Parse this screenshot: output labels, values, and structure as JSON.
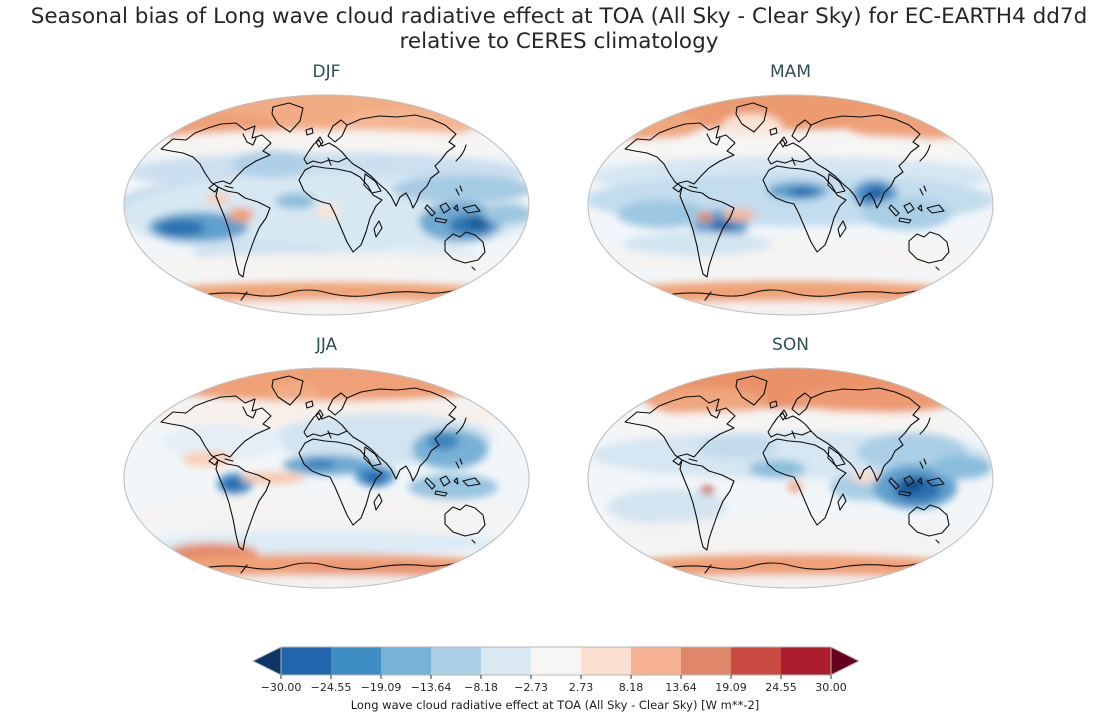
{
  "figure": {
    "title_line1": "Seasonal bias of Long wave cloud radiative effect at TOA (All Sky - Clear Sky) for EC-EARTH4 dd7d",
    "title_line2": "relative to CERES climatology"
  },
  "styles": {
    "figure_title_color": "#262626",
    "panel_title_color": "#2e4f55",
    "map_outline_color": "#c2c2c2",
    "coastline_color": "#0d0d0d",
    "ocean_base_color": "#f2f6f9"
  },
  "panels": [
    {
      "id": "djf",
      "title": "DJF",
      "blobs": [
        [
          203,
          16,
          195,
          24,
          "#f2ac83"
        ],
        [
          95,
          34,
          60,
          16,
          "#eea077"
        ],
        [
          285,
          30,
          70,
          14,
          "#f4b692"
        ],
        [
          203,
          52,
          195,
          16,
          "#f7f5f3"
        ],
        [
          203,
          78,
          200,
          20,
          "#ccdff0"
        ],
        [
          60,
          115,
          70,
          25,
          "#c2daec"
        ],
        [
          203,
          122,
          205,
          42,
          "#d8e8f3"
        ],
        [
          150,
          70,
          40,
          14,
          "#aecfe6"
        ],
        [
          340,
          95,
          70,
          14,
          "#a5cbe3"
        ],
        [
          75,
          133,
          50,
          15,
          "#5fa0cd"
        ],
        [
          58,
          134,
          24,
          8,
          "#2b6fb0"
        ],
        [
          172,
          107,
          20,
          8,
          "#8fbeda"
        ],
        [
          338,
          128,
          42,
          20,
          "#70a9d1"
        ],
        [
          348,
          131,
          22,
          10,
          "#2f74b2"
        ],
        [
          354,
          128,
          10,
          6,
          "#155a97"
        ],
        [
          385,
          120,
          25,
          10,
          "#9cc6e0"
        ],
        [
          118,
          121,
          13,
          7,
          "#efa076"
        ],
        [
          95,
          105,
          12,
          6,
          "#f7cdb4"
        ],
        [
          205,
          117,
          12,
          7,
          "#fbe3d3"
        ],
        [
          140,
          160,
          70,
          14,
          "#cfe2f0"
        ],
        [
          300,
          165,
          60,
          12,
          "#dfecf5"
        ],
        [
          203,
          172,
          195,
          12,
          "#f6f4f2"
        ],
        [
          203,
          200,
          185,
          12,
          "#f0a477"
        ],
        [
          203,
          216,
          170,
          10,
          "#f4f2f0"
        ]
      ]
    },
    {
      "id": "mam",
      "title": "MAM",
      "blobs": [
        [
          203,
          14,
          195,
          22,
          "#ec9a70"
        ],
        [
          60,
          32,
          55,
          14,
          "#f0a77e"
        ],
        [
          330,
          30,
          75,
          16,
          "#efa27a"
        ],
        [
          165,
          32,
          30,
          12,
          "#f9e4d6"
        ],
        [
          203,
          55,
          195,
          14,
          "#f7f6f4"
        ],
        [
          203,
          82,
          200,
          20,
          "#d6e6f2"
        ],
        [
          203,
          106,
          205,
          26,
          "#c3dcee"
        ],
        [
          133,
          131,
          28,
          15,
          "#5f9fcc"
        ],
        [
          136,
          133,
          13,
          8,
          "#2b6fb0"
        ],
        [
          211,
          97,
          30,
          9,
          "#5f9fcc"
        ],
        [
          216,
          98,
          14,
          5,
          "#2b6fb0"
        ],
        [
          288,
          100,
          22,
          14,
          "#4b93c6"
        ],
        [
          289,
          101,
          11,
          8,
          "#1f63a8"
        ],
        [
          320,
          120,
          45,
          16,
          "#a9cee5"
        ],
        [
          75,
          120,
          45,
          14,
          "#9dc7e2"
        ],
        [
          118,
          123,
          8,
          5,
          "#e08565"
        ],
        [
          152,
          121,
          16,
          6,
          "#f5b794"
        ],
        [
          203,
          162,
          195,
          18,
          "#f5f4f2"
        ],
        [
          110,
          150,
          75,
          12,
          "#d3e5f1"
        ],
        [
          203,
          199,
          180,
          12,
          "#f0a276"
        ],
        [
          203,
          216,
          170,
          9,
          "#f4f2f0"
        ]
      ]
    },
    {
      "id": "jja",
      "title": "JJA",
      "blobs": [
        [
          203,
          14,
          195,
          20,
          "#efa077"
        ],
        [
          170,
          28,
          26,
          14,
          "#f2ab82"
        ],
        [
          203,
          48,
          195,
          14,
          "#f8f0ea"
        ],
        [
          260,
          72,
          110,
          26,
          "#d2e4f1"
        ],
        [
          100,
          75,
          60,
          18,
          "#e4eef6"
        ],
        [
          205,
          98,
          45,
          10,
          "#6ea8d0"
        ],
        [
          196,
          97,
          16,
          6,
          "#3b84bc"
        ],
        [
          252,
          109,
          20,
          11,
          "#4b93c6"
        ],
        [
          251,
          111,
          10,
          6,
          "#2166ac"
        ],
        [
          112,
          117,
          18,
          11,
          "#4b93c6"
        ],
        [
          110,
          117,
          9,
          6,
          "#2166ac"
        ],
        [
          327,
          82,
          38,
          20,
          "#79b1d6"
        ],
        [
          320,
          74,
          16,
          9,
          "#3b84bc"
        ],
        [
          330,
          120,
          45,
          13,
          "#97c4e0"
        ],
        [
          150,
          111,
          32,
          6,
          "#f7c8ac"
        ],
        [
          85,
          92,
          26,
          8,
          "#f8cfb8"
        ],
        [
          203,
          150,
          195,
          22,
          "#f4f3f1"
        ],
        [
          203,
          176,
          180,
          12,
          "#dcebf4"
        ],
        [
          90,
          186,
          45,
          10,
          "#e58b6a"
        ],
        [
          203,
          199,
          180,
          12,
          "#efa077"
        ],
        [
          260,
          205,
          90,
          9,
          "#e9946f"
        ],
        [
          203,
          217,
          165,
          9,
          "#f3f1ef"
        ]
      ]
    },
    {
      "id": "son",
      "title": "SON",
      "blobs": [
        [
          203,
          16,
          195,
          26,
          "#ea9168"
        ],
        [
          290,
          32,
          85,
          14,
          "#ed9a72"
        ],
        [
          120,
          35,
          60,
          14,
          "#efa67e"
        ],
        [
          203,
          58,
          195,
          14,
          "#f7f5f3"
        ],
        [
          203,
          88,
          200,
          24,
          "#d6e6f2"
        ],
        [
          150,
          80,
          40,
          12,
          "#c2daec"
        ],
        [
          325,
          85,
          55,
          20,
          "#abcfe6"
        ],
        [
          190,
          102,
          28,
          9,
          "#8abddc"
        ],
        [
          282,
          120,
          40,
          14,
          "#a9cee5"
        ],
        [
          328,
          120,
          42,
          22,
          "#5f9fcc"
        ],
        [
          330,
          122,
          24,
          13,
          "#2b6fb0"
        ],
        [
          324,
          118,
          12,
          7,
          "#11518f"
        ],
        [
          375,
          100,
          30,
          12,
          "#8abddc"
        ],
        [
          120,
          124,
          7,
          5,
          "#c84a42"
        ],
        [
          208,
          120,
          7,
          5,
          "#ef9c74"
        ],
        [
          278,
          110,
          14,
          6,
          "#f9ddcc"
        ],
        [
          80,
          140,
          60,
          18,
          "#d3e5f1"
        ],
        [
          203,
          168,
          190,
          16,
          "#f5f3f1"
        ],
        [
          203,
          200,
          182,
          13,
          "#efa077"
        ],
        [
          203,
          217,
          168,
          9,
          "#f3f1ef"
        ]
      ]
    }
  ],
  "colorbar": {
    "tick_labels": [
      "−30.00",
      "−24.55",
      "−19.09",
      "−13.64",
      "−8.18",
      "−2.73",
      "2.73",
      "8.18",
      "13.64",
      "19.09",
      "24.55",
      "30.00"
    ],
    "segment_colors": [
      "#2166ac",
      "#3e8ec4",
      "#77b3d7",
      "#abcfe5",
      "#dbe9f2",
      "#f7f6f4",
      "#fbe0d1",
      "#f5b191",
      "#e0876a",
      "#c94b42",
      "#ab1c2c"
    ],
    "extend_left_color": "#0b3666",
    "extend_right_color": "#67001f",
    "border_color": "#b5b5b5",
    "tick_color": "#262626",
    "label": "Long wave cloud radiative effect at TOA (All Sky - Clear Sky) [W m**-2]"
  },
  "chart_data": {
    "type": "heatmap",
    "title": "Seasonal bias of Long wave cloud radiative effect at TOA (All Sky - Clear Sky) for EC-EARTH4 dd7d relative to CERES climatology",
    "panels": [
      "DJF",
      "MAM",
      "JJA",
      "SON"
    ],
    "variable": "Long wave cloud radiative effect at TOA (All Sky - Clear Sky)",
    "units": "W m**-2",
    "model": "EC-EARTH4 dd7d",
    "reference": "CERES climatology",
    "layout": {
      "grid": "2x2 world maps",
      "legend_position": "bottom colorbar",
      "colormap": "diverging blue-white-red (RdBu_r), extended both ends"
    },
    "colorbar_ticks": [
      -30.0,
      -24.55,
      -19.09,
      -13.64,
      -8.18,
      -2.73,
      2.73,
      8.18,
      13.64,
      19.09,
      24.55,
      30.0
    ],
    "value_range": [
      -30,
      30
    ],
    "notable_features": {
      "DJF": "Widespread weak negative bias (light blue) over tropical/midlatitude oceans; strong negative bias (~-15 to -25 W m**-2) over the Maritime Continent/north of Australia and SE Pacific off Peru; positive bias (~+5 to +10) over the Arctic, Andes/Bolivia and along the Antarctic coast.",
      "MAM": "Positive bias band (~+8) across the Arctic and Antarctic coastal zone; strong negative bias over Amazonia, the Sahel and India/Bay of Bengal (~-15 to -25); broad weak negative bias across tropical oceans.",
      "JJA": "Positive bias over the Arctic and around Antarctica; negative bias over the Sahara/Sahel, Ethiopia/Arabian Sea, Colombia and East Asia/NW Pacific (~-10 to -20); weak negative bias elsewhere.",
      "SON": "Strong positive bias over the Arctic (~+10); strongest negative bias over the Maritime Continent (~-20 to -30); small strong positive spot near Ecuador/Peru; positive ring around Antarctica."
    }
  }
}
